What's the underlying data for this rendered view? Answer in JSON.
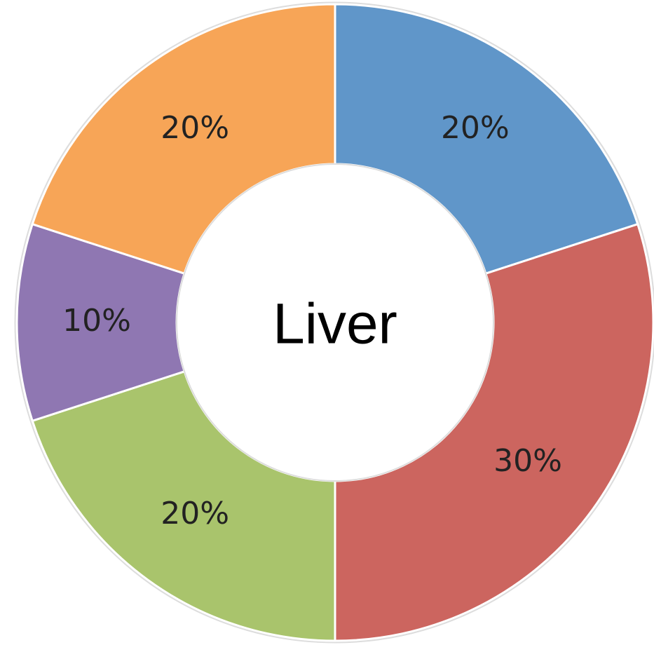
{
  "chart_data": {
    "type": "donut",
    "title": "Liver",
    "values": [
      20,
      30,
      20,
      10,
      20
    ],
    "value_labels": [
      "20%",
      "30%",
      "20%",
      "10%",
      "20%"
    ],
    "colors": [
      "#6096c9",
      "#cc655f",
      "#a9c46c",
      "#8f77b2",
      "#f7a557"
    ]
  }
}
